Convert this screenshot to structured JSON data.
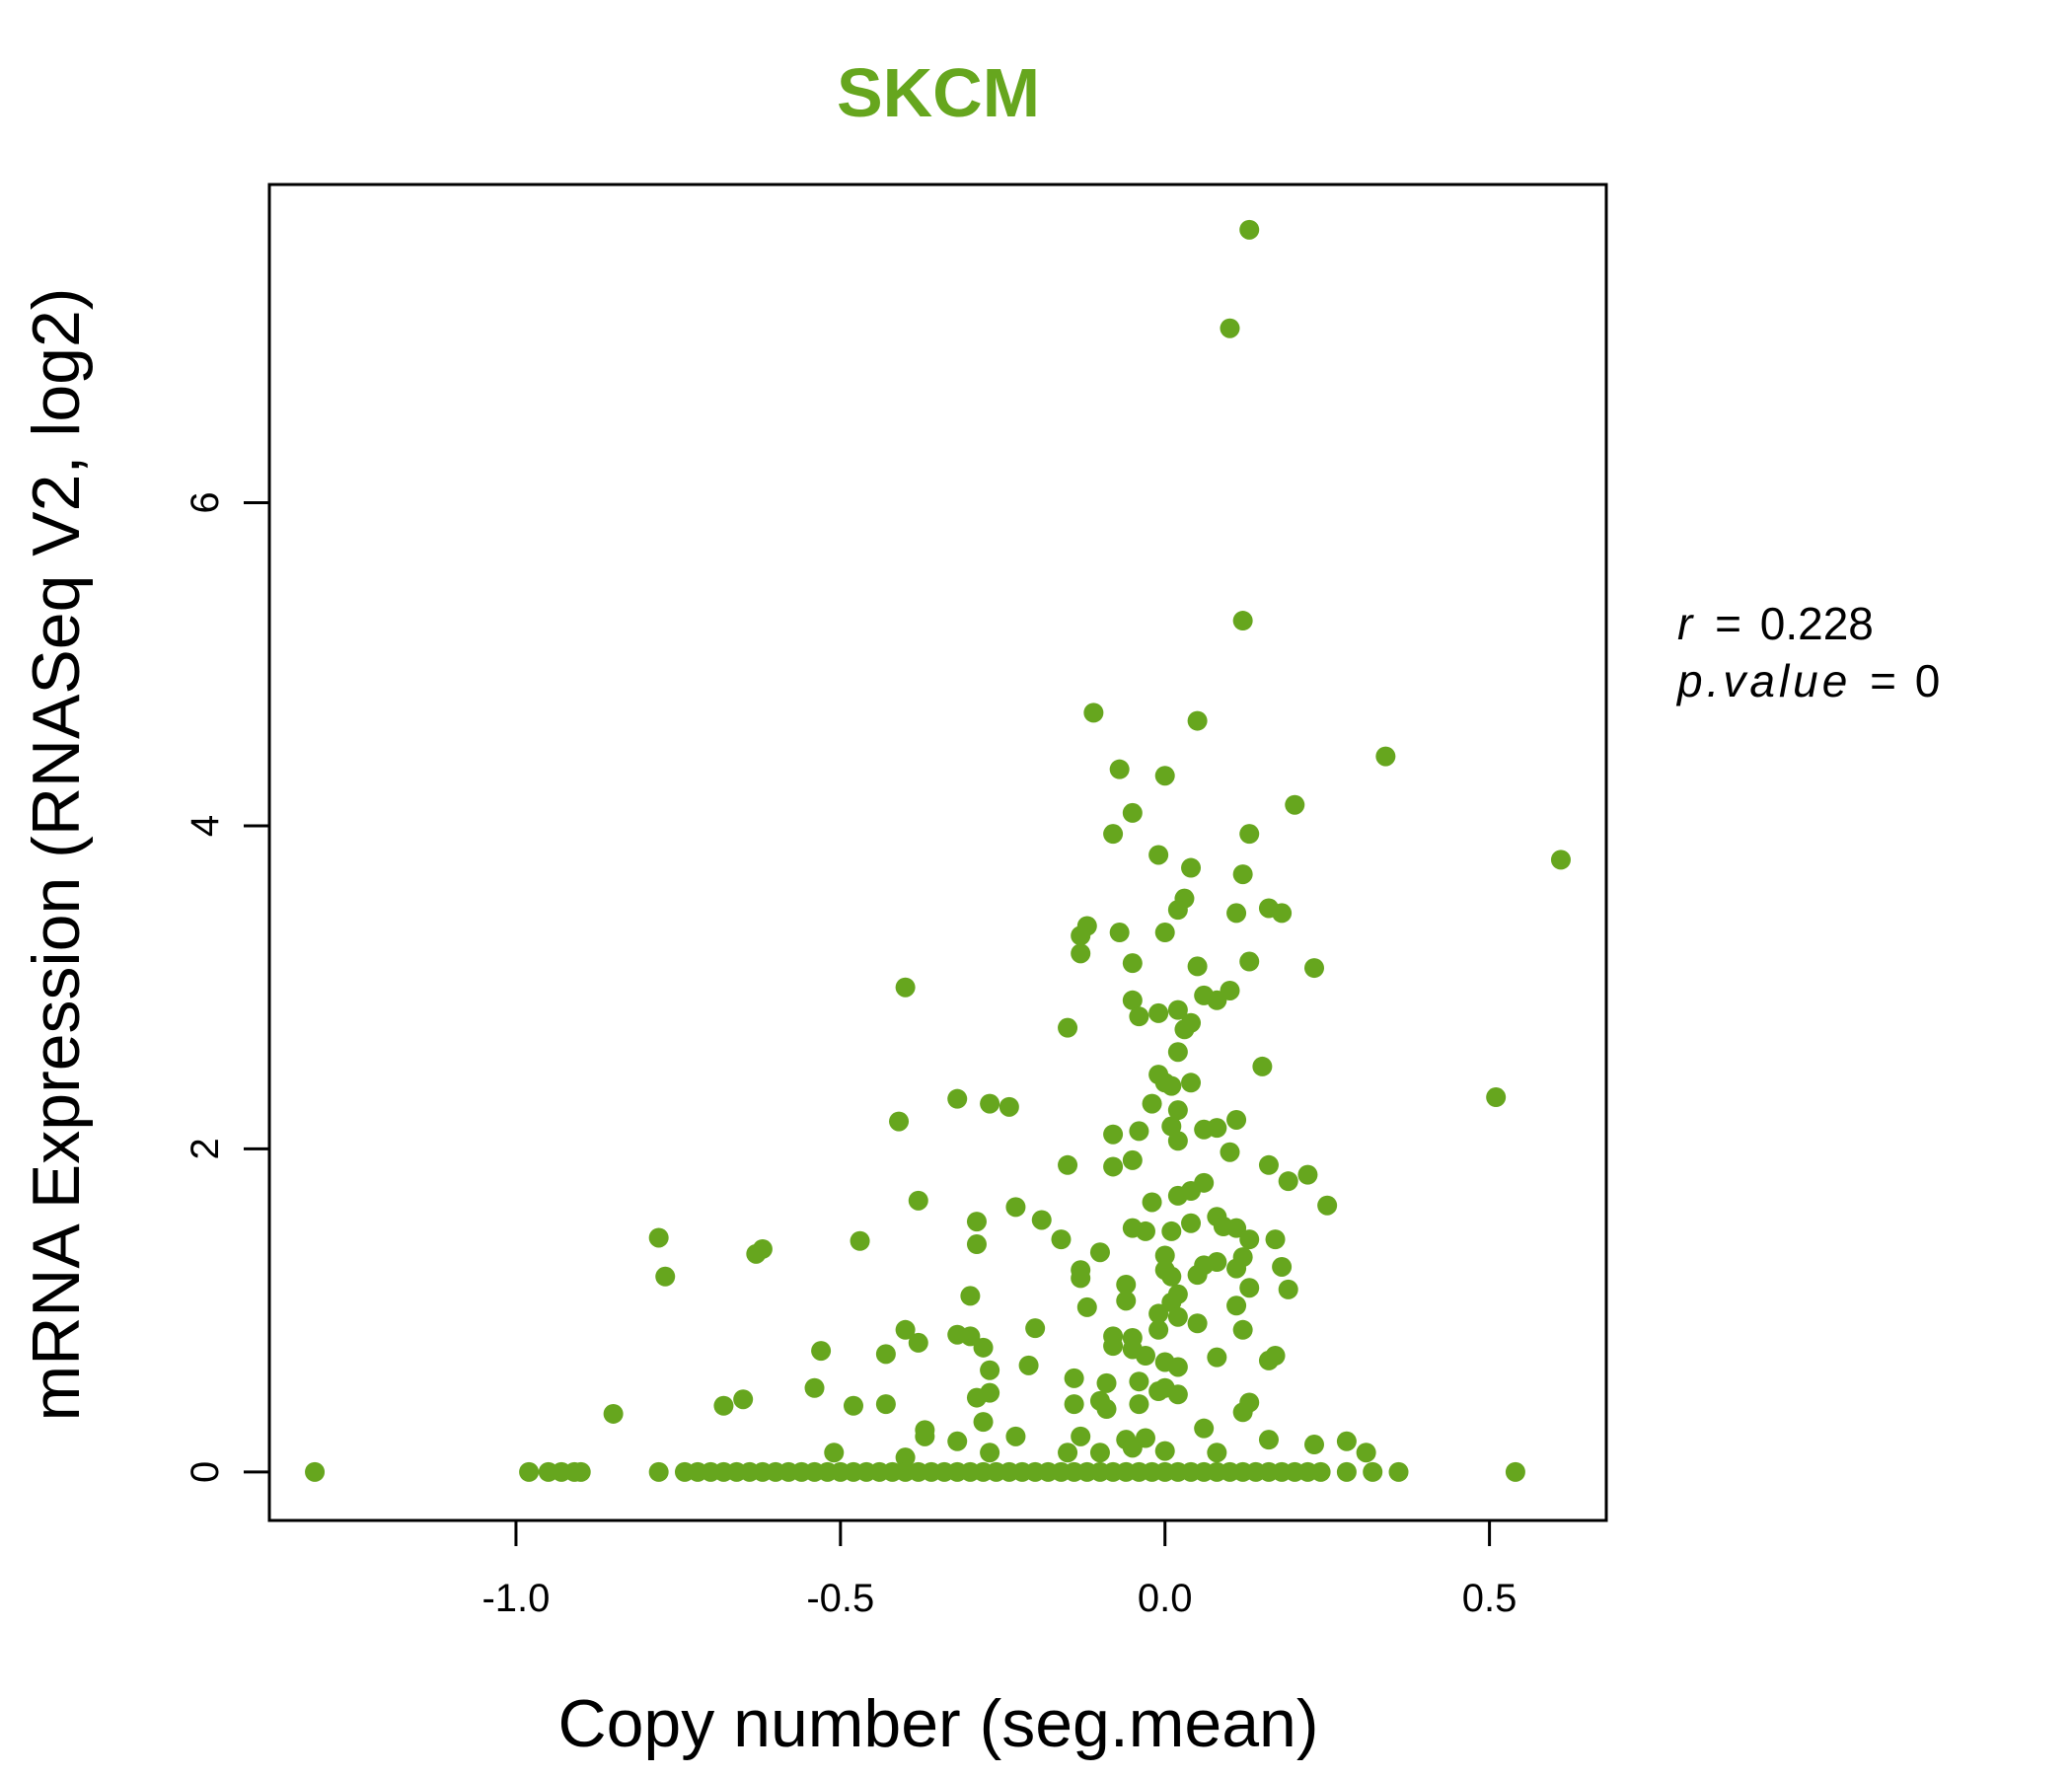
{
  "colors": {
    "points": "#66a61e",
    "title": "#66a61e",
    "axes": "#000000"
  },
  "stats": {
    "r_label": "r",
    "r_value": "0.228",
    "p_label": "p.value",
    "p_value": "0",
    "eq": "="
  },
  "chart_data": {
    "type": "scatter",
    "title": "SKCM",
    "xlabel": "Copy number (seg.mean)",
    "ylabel": "mRNA Expression (RNASeq V2, log2)",
    "xlim": [
      -1.38,
      0.68
    ],
    "ylim": [
      -0.3,
      7.97
    ],
    "x_ticks": [
      -1.0,
      -0.5,
      0.0,
      0.5
    ],
    "x_tick_labels": [
      "-1.0",
      "-0.5",
      "0.0",
      "0.5"
    ],
    "y_ticks": [
      0,
      2,
      4,
      6
    ],
    "y_tick_labels": [
      "0",
      "2",
      "4",
      "6"
    ],
    "grid": false,
    "legend": "none",
    "series": [
      {
        "marker": "filled-circle",
        "points": [
          [
            0.13,
            7.69
          ],
          [
            0.1,
            7.08
          ],
          [
            0.12,
            5.27
          ],
          [
            -0.11,
            4.7
          ],
          [
            0.05,
            4.65
          ],
          [
            0.34,
            4.43
          ],
          [
            -0.07,
            4.35
          ],
          [
            0.0,
            4.31
          ],
          [
            0.2,
            4.13
          ],
          [
            -0.05,
            4.08
          ],
          [
            -0.08,
            3.95
          ],
          [
            0.13,
            3.95
          ],
          [
            -0.01,
            3.82
          ],
          [
            0.61,
            3.79
          ],
          [
            0.04,
            3.74
          ],
          [
            0.12,
            3.7
          ],
          [
            0.03,
            3.55
          ],
          [
            0.16,
            3.49
          ],
          [
            0.02,
            3.48
          ],
          [
            0.11,
            3.46
          ],
          [
            0.18,
            3.46
          ],
          [
            -0.12,
            3.38
          ],
          [
            -0.13,
            3.32
          ],
          [
            -0.07,
            3.34
          ],
          [
            0.0,
            3.34
          ],
          [
            -0.13,
            3.21
          ],
          [
            -0.05,
            3.15
          ],
          [
            0.13,
            3.16
          ],
          [
            0.05,
            3.13
          ],
          [
            0.23,
            3.12
          ],
          [
            -0.4,
            3.0
          ],
          [
            0.1,
            2.98
          ],
          [
            0.06,
            2.95
          ],
          [
            0.08,
            2.92
          ],
          [
            -0.05,
            2.92
          ],
          [
            0.02,
            2.86
          ],
          [
            -0.04,
            2.82
          ],
          [
            -0.01,
            2.84
          ],
          [
            0.04,
            2.78
          ],
          [
            -0.15,
            2.75
          ],
          [
            0.03,
            2.74
          ],
          [
            0.02,
            2.6
          ],
          [
            0.15,
            2.51
          ],
          [
            -0.01,
            2.46
          ],
          [
            0.0,
            2.41
          ],
          [
            0.04,
            2.41
          ],
          [
            0.01,
            2.39
          ],
          [
            -0.32,
            2.31
          ],
          [
            0.51,
            2.32
          ],
          [
            -0.27,
            2.28
          ],
          [
            -0.24,
            2.26
          ],
          [
            -0.02,
            2.28
          ],
          [
            0.02,
            2.24
          ],
          [
            0.11,
            2.18
          ],
          [
            -0.41,
            2.17
          ],
          [
            0.01,
            2.14
          ],
          [
            0.08,
            2.13
          ],
          [
            0.06,
            2.12
          ],
          [
            -0.04,
            2.11
          ],
          [
            -0.08,
            2.09
          ],
          [
            0.02,
            2.05
          ],
          [
            0.1,
            1.98
          ],
          [
            -0.05,
            1.93
          ],
          [
            -0.15,
            1.9
          ],
          [
            -0.08,
            1.89
          ],
          [
            0.16,
            1.9
          ],
          [
            0.22,
            1.84
          ],
          [
            0.19,
            1.8
          ],
          [
            0.06,
            1.79
          ],
          [
            0.04,
            1.74
          ],
          [
            0.02,
            1.71
          ],
          [
            -0.38,
            1.68
          ],
          [
            -0.02,
            1.67
          ],
          [
            0.25,
            1.65
          ],
          [
            -0.23,
            1.64
          ],
          [
            0.08,
            1.58
          ],
          [
            -0.19,
            1.56
          ],
          [
            -0.29,
            1.55
          ],
          [
            0.09,
            1.52
          ],
          [
            0.11,
            1.51
          ],
          [
            -0.05,
            1.51
          ],
          [
            -0.03,
            1.49
          ],
          [
            0.04,
            1.54
          ],
          [
            0.01,
            1.49
          ],
          [
            -0.78,
            1.45
          ],
          [
            -0.47,
            1.43
          ],
          [
            0.13,
            1.44
          ],
          [
            0.17,
            1.44
          ],
          [
            -0.16,
            1.44
          ],
          [
            -0.29,
            1.41
          ],
          [
            -0.62,
            1.38
          ],
          [
            -0.63,
            1.35
          ],
          [
            -0.1,
            1.36
          ],
          [
            0.0,
            1.34
          ],
          [
            0.12,
            1.33
          ],
          [
            0.08,
            1.3
          ],
          [
            0.06,
            1.28
          ],
          [
            0.11,
            1.26
          ],
          [
            0.18,
            1.27
          ],
          [
            -0.13,
            1.25
          ],
          [
            0.0,
            1.25
          ],
          [
            0.01,
            1.21
          ],
          [
            0.05,
            1.22
          ],
          [
            -0.77,
            1.21
          ],
          [
            -0.13,
            1.2
          ],
          [
            -0.06,
            1.16
          ],
          [
            0.13,
            1.14
          ],
          [
            0.19,
            1.13
          ],
          [
            -0.3,
            1.09
          ],
          [
            0.02,
            1.1
          ],
          [
            -0.06,
            1.06
          ],
          [
            0.01,
            1.05
          ],
          [
            0.11,
            1.03
          ],
          [
            -0.12,
            1.02
          ],
          [
            -0.01,
            0.98
          ],
          [
            0.02,
            0.96
          ],
          [
            0.05,
            0.92
          ],
          [
            -0.01,
            0.88
          ],
          [
            0.12,
            0.88
          ],
          [
            -0.4,
            0.88
          ],
          [
            -0.2,
            0.89
          ],
          [
            -0.32,
            0.85
          ],
          [
            -0.3,
            0.84
          ],
          [
            -0.08,
            0.84
          ],
          [
            -0.05,
            0.83
          ],
          [
            -0.38,
            0.8
          ],
          [
            -0.08,
            0.78
          ],
          [
            -0.28,
            0.77
          ],
          [
            -0.05,
            0.76
          ],
          [
            -0.53,
            0.75
          ],
          [
            -0.43,
            0.73
          ],
          [
            -0.03,
            0.72
          ],
          [
            0.17,
            0.72
          ],
          [
            0.08,
            0.71
          ],
          [
            0.16,
            0.69
          ],
          [
            0.0,
            0.68
          ],
          [
            0.02,
            0.65
          ],
          [
            -0.21,
            0.66
          ],
          [
            -0.27,
            0.63
          ],
          [
            -0.14,
            0.58
          ],
          [
            -0.09,
            0.55
          ],
          [
            -0.04,
            0.56
          ],
          [
            0.0,
            0.52
          ],
          [
            -0.01,
            0.5
          ],
          [
            0.02,
            0.48
          ],
          [
            -0.54,
            0.52
          ],
          [
            -0.27,
            0.49
          ],
          [
            -0.29,
            0.46
          ],
          [
            -0.65,
            0.45
          ],
          [
            -0.1,
            0.44
          ],
          [
            -0.14,
            0.42
          ],
          [
            -0.04,
            0.42
          ],
          [
            0.13,
            0.43
          ],
          [
            -0.68,
            0.41
          ],
          [
            -0.48,
            0.41
          ],
          [
            -0.43,
            0.42
          ],
          [
            -0.09,
            0.39
          ],
          [
            0.12,
            0.37
          ],
          [
            -0.85,
            0.36
          ],
          [
            -0.28,
            0.31
          ],
          [
            0.06,
            0.27
          ],
          [
            -0.37,
            0.26
          ],
          [
            -0.37,
            0.22
          ],
          [
            -0.13,
            0.22
          ],
          [
            -0.06,
            0.2
          ],
          [
            -0.03,
            0.21
          ],
          [
            0.16,
            0.2
          ],
          [
            -0.23,
            0.22
          ],
          [
            -0.32,
            0.19
          ],
          [
            0.28,
            0.19
          ],
          [
            0.23,
            0.17
          ],
          [
            -0.05,
            0.15
          ],
          [
            -0.51,
            0.12
          ],
          [
            -0.27,
            0.12
          ],
          [
            -0.15,
            0.12
          ],
          [
            -0.1,
            0.12
          ],
          [
            0.0,
            0.13
          ],
          [
            0.08,
            0.12
          ],
          [
            0.31,
            0.12
          ],
          [
            -0.4,
            0.09
          ],
          [
            -1.31,
            0.0
          ],
          [
            -0.98,
            0.0
          ],
          [
            -0.95,
            0.0
          ],
          [
            -0.93,
            0.0
          ],
          [
            -0.91,
            0.0
          ],
          [
            -0.9,
            0.0
          ],
          [
            -0.78,
            0.0
          ],
          [
            -0.74,
            0.0
          ],
          [
            -0.72,
            0.0
          ],
          [
            -0.7,
            0.0
          ],
          [
            -0.68,
            0.0
          ],
          [
            -0.66,
            0.0
          ],
          [
            -0.64,
            0.0
          ],
          [
            -0.62,
            0.0
          ],
          [
            -0.6,
            0.0
          ],
          [
            -0.58,
            0.0
          ],
          [
            -0.56,
            0.0
          ],
          [
            -0.54,
            0.0
          ],
          [
            -0.52,
            0.0
          ],
          [
            -0.5,
            0.0
          ],
          [
            -0.48,
            0.0
          ],
          [
            -0.46,
            0.0
          ],
          [
            -0.44,
            0.0
          ],
          [
            -0.42,
            0.0
          ],
          [
            -0.4,
            0.0
          ],
          [
            -0.38,
            0.0
          ],
          [
            -0.36,
            0.0
          ],
          [
            -0.34,
            0.0
          ],
          [
            -0.32,
            0.0
          ],
          [
            -0.3,
            0.0
          ],
          [
            -0.28,
            0.0
          ],
          [
            -0.26,
            0.0
          ],
          [
            -0.24,
            0.0
          ],
          [
            -0.22,
            0.0
          ],
          [
            -0.2,
            0.0
          ],
          [
            -0.18,
            0.0
          ],
          [
            -0.16,
            0.0
          ],
          [
            -0.14,
            0.0
          ],
          [
            -0.12,
            0.0
          ],
          [
            -0.1,
            0.0
          ],
          [
            -0.08,
            0.0
          ],
          [
            -0.06,
            0.0
          ],
          [
            -0.04,
            0.0
          ],
          [
            -0.02,
            0.0
          ],
          [
            0.0,
            0.0
          ],
          [
            0.02,
            0.0
          ],
          [
            0.04,
            0.0
          ],
          [
            0.06,
            0.0
          ],
          [
            0.08,
            0.0
          ],
          [
            0.1,
            0.0
          ],
          [
            0.12,
            0.0
          ],
          [
            0.14,
            0.0
          ],
          [
            0.16,
            0.0
          ],
          [
            0.18,
            0.0
          ],
          [
            0.2,
            0.0
          ],
          [
            0.22,
            0.0
          ],
          [
            0.24,
            0.0
          ],
          [
            0.28,
            0.0
          ],
          [
            0.32,
            0.0
          ],
          [
            0.36,
            0.0
          ],
          [
            0.54,
            0.0
          ]
        ]
      }
    ]
  }
}
